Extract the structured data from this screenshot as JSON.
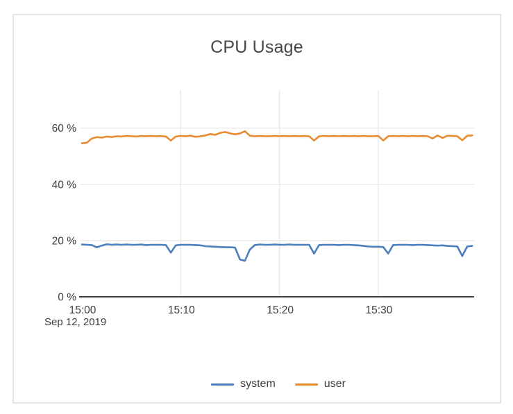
{
  "chart_data": {
    "type": "line",
    "title": "CPU Usage",
    "date_label": "Sep 12, 2019",
    "xlabel": "",
    "ylabel": "",
    "grid": true,
    "legend_position": "bottom",
    "axis_color": "#3f3f3f",
    "grid_color": "#e8e8e8",
    "tick_text_color": "#3d3d3d",
    "x_unit": "minutes after 15:00",
    "x_start_min": 0,
    "x_step_min": 0.5,
    "x_range_min": [
      0,
      39.7
    ],
    "ylim": [
      0,
      73.5
    ],
    "x_ticks": [
      {
        "min": 0,
        "label": "15:00"
      },
      {
        "min": 10,
        "label": "15:10"
      },
      {
        "min": 20,
        "label": "15:20"
      },
      {
        "min": 30,
        "label": "15:30"
      }
    ],
    "y_ticks": [
      {
        "value": 0,
        "label": "0 %"
      },
      {
        "value": 20,
        "label": "20 %"
      },
      {
        "value": 40,
        "label": "40 %"
      },
      {
        "value": 60,
        "label": "60 %"
      }
    ],
    "series": [
      {
        "name": "system",
        "color": "#4a7ebc",
        "values": [
          18.6,
          18.5,
          18.4,
          17.6,
          18.2,
          18.7,
          18.5,
          18.6,
          18.5,
          18.6,
          18.5,
          18.5,
          18.6,
          18.4,
          18.5,
          18.5,
          18.5,
          18.4,
          15.7,
          18.3,
          18.5,
          18.5,
          18.5,
          18.4,
          18.3,
          18.0,
          17.9,
          17.8,
          17.7,
          17.6,
          17.6,
          17.5,
          13.3,
          12.8,
          16.8,
          18.4,
          18.6,
          18.5,
          18.5,
          18.6,
          18.5,
          18.5,
          18.6,
          18.5,
          18.5,
          18.5,
          18.5,
          15.4,
          18.4,
          18.5,
          18.5,
          18.5,
          18.4,
          18.5,
          18.5,
          18.4,
          18.3,
          18.1,
          17.9,
          17.8,
          17.8,
          17.7,
          15.4,
          18.4,
          18.5,
          18.5,
          18.5,
          18.4,
          18.5,
          18.5,
          18.4,
          18.3,
          18.2,
          18.3,
          18.1,
          18.0,
          17.9,
          14.5,
          17.9,
          18.1
        ]
      },
      {
        "name": "user",
        "color": "#e88b30",
        "values": [
          54.6,
          54.8,
          56.3,
          56.8,
          56.6,
          57.0,
          56.8,
          57.1,
          57.0,
          57.2,
          57.1,
          57.0,
          57.2,
          57.1,
          57.2,
          57.1,
          57.2,
          57.0,
          55.6,
          57.0,
          57.2,
          57.1,
          57.3,
          56.9,
          57.1,
          57.4,
          57.9,
          57.6,
          58.3,
          58.6,
          58.1,
          57.8,
          58.1,
          58.9,
          57.3,
          57.1,
          57.2,
          57.1,
          57.1,
          57.2,
          57.1,
          57.2,
          57.1,
          57.2,
          57.1,
          57.2,
          57.1,
          55.6,
          57.1,
          57.2,
          57.1,
          57.2,
          57.1,
          57.2,
          57.1,
          57.2,
          57.1,
          57.2,
          57.1,
          57.1,
          57.2,
          55.6,
          57.1,
          57.2,
          57.1,
          57.2,
          57.1,
          57.2,
          57.1,
          57.2,
          57.1,
          56.3,
          57.4,
          56.5,
          57.3,
          57.2,
          57.1,
          55.7,
          57.3,
          57.4
        ]
      }
    ]
  }
}
